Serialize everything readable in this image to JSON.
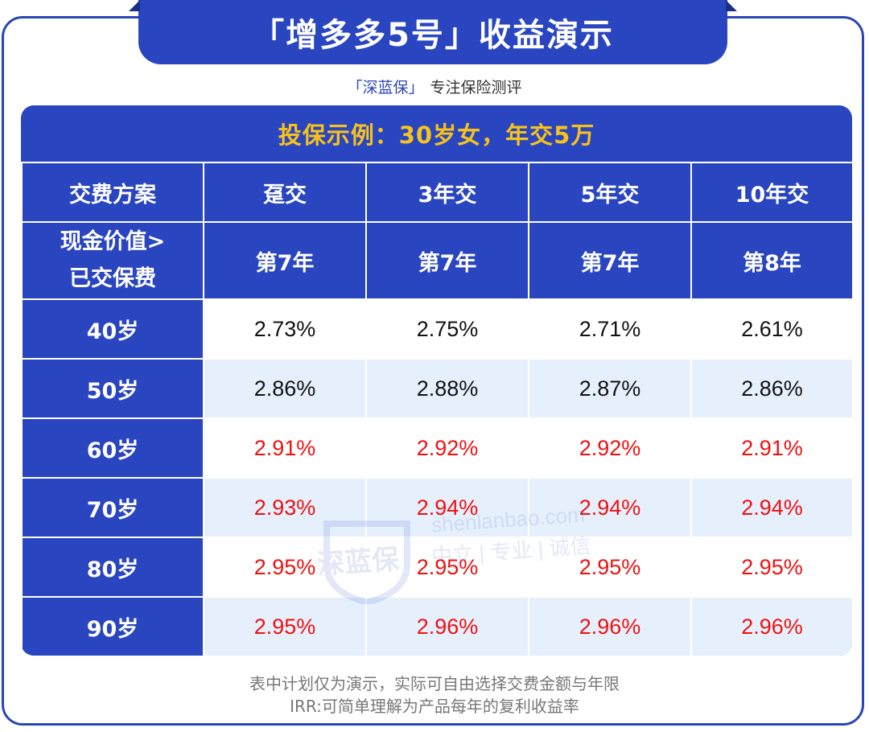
{
  "title": "「增多多5号」收益演示",
  "subtitle": {
    "brand": "「深蓝保」",
    "text": "专注保险测评"
  },
  "example": "投保示例：30岁女，年交5万",
  "table": {
    "header_label": "交费方案",
    "plans": [
      "趸交",
      "3年交",
      "5年交",
      "10年交"
    ],
    "sub_label_line1": "现金价值>",
    "sub_label_line2": "已交保费",
    "breakeven_years": [
      "第7年",
      "第7年",
      "第7年",
      "第8年"
    ],
    "rows": [
      {
        "age": "40岁",
        "values": [
          "2.73%",
          "2.75%",
          "2.71%",
          "2.61%"
        ],
        "highlight": false
      },
      {
        "age": "50岁",
        "values": [
          "2.86%",
          "2.88%",
          "2.87%",
          "2.86%"
        ],
        "highlight": false
      },
      {
        "age": "60岁",
        "values": [
          "2.91%",
          "2.92%",
          "2.92%",
          "2.91%"
        ],
        "highlight": true
      },
      {
        "age": "70岁",
        "values": [
          "2.93%",
          "2.94%",
          "2.94%",
          "2.94%"
        ],
        "highlight": true
      },
      {
        "age": "80岁",
        "values": [
          "2.95%",
          "2.95%",
          "2.95%",
          "2.95%"
        ],
        "highlight": true
      },
      {
        "age": "90岁",
        "values": [
          "2.95%",
          "2.96%",
          "2.96%",
          "2.96%"
        ],
        "highlight": true
      }
    ]
  },
  "watermark": {
    "logo": "深蓝保",
    "domain": "shenlanbao.com",
    "slogan": "中立 | 专业 | 诚信"
  },
  "footnotes": [
    "表中计划仅为演示，实际可自由选择交费金额与年限",
    "IRR:可简单理解为产品每年的复利收益率"
  ],
  "colors": {
    "primary": "#2a45c0",
    "accent": "#f7c31a",
    "highlight": "#ee1111",
    "stripe": "#e6f0fd"
  }
}
